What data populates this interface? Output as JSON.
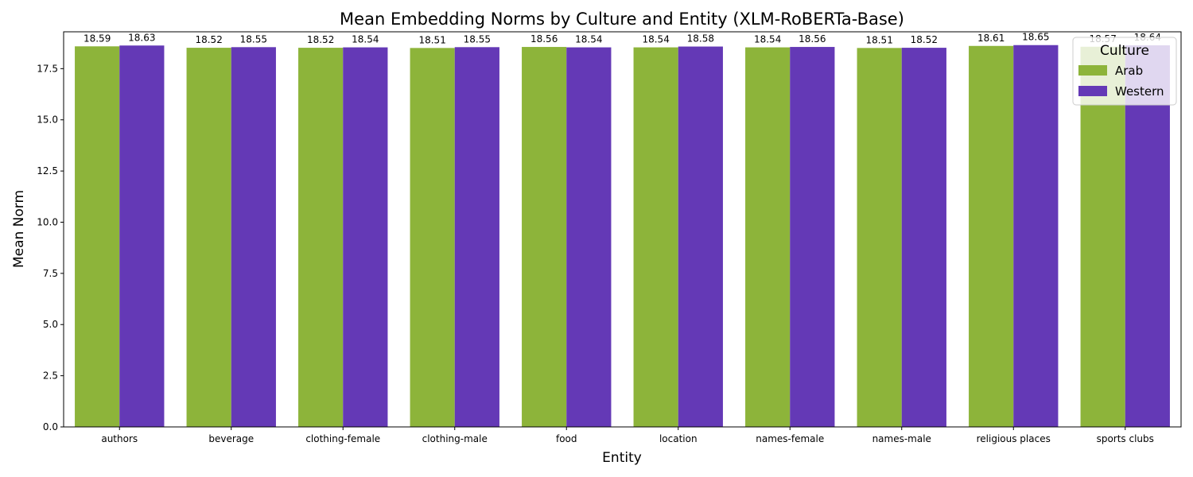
{
  "chart_data": {
    "type": "bar",
    "title": "Mean Embedding Norms by Culture and Entity (XLM-RoBERTa-Base)",
    "xlabel": "Entity",
    "ylabel": "Mean Norm",
    "ylim": [
      0,
      19.3
    ],
    "yticks": [
      "0.0",
      "2.5",
      "5.0",
      "7.5",
      "10.0",
      "12.5",
      "15.0",
      "17.5"
    ],
    "grid": false,
    "legend": {
      "title": "Culture",
      "placement": "top-right"
    },
    "categories": [
      "authors",
      "beverage",
      "clothing-female",
      "clothing-male",
      "food",
      "location",
      "names-female",
      "names-male",
      "religious places",
      "sports clubs"
    ],
    "series": [
      {
        "name": "Arab",
        "color": "#8db43a",
        "values": [
          18.59,
          18.52,
          18.52,
          18.51,
          18.56,
          18.54,
          18.54,
          18.51,
          18.61,
          18.57
        ],
        "labels": [
          "18.59",
          "18.52",
          "18.52",
          "18.51",
          "18.56",
          "18.54",
          "18.54",
          "18.51",
          "18.61",
          "18.57"
        ]
      },
      {
        "name": "Western",
        "color": "#6439b6",
        "values": [
          18.63,
          18.55,
          18.54,
          18.55,
          18.54,
          18.58,
          18.56,
          18.52,
          18.65,
          18.64
        ],
        "labels": [
          "18.63",
          "18.55",
          "18.54",
          "18.55",
          "18.54",
          "18.58",
          "18.56",
          "18.52",
          "18.65",
          "18.64"
        ]
      }
    ]
  }
}
